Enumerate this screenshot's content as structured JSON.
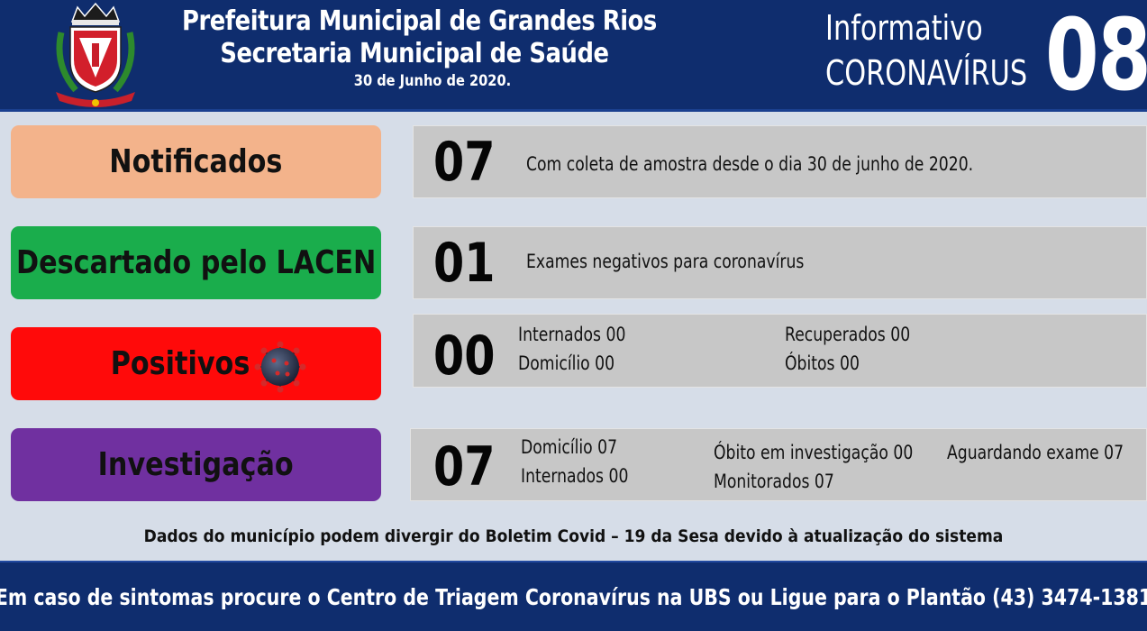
{
  "header": {
    "title_line1": "Prefeitura Municipal de Grandes Rios",
    "title_line2": "Secretaria Municipal de Saúde",
    "date": "30 de Junho de 2020.",
    "info_word": "Informativo",
    "info_topic": "CORONAVÍRUS",
    "edition_number": "08",
    "crest_icon": "municipal-coat-of-arms-icon"
  },
  "rows": {
    "notificados": {
      "label": "Notificados",
      "color": "#f3b38b",
      "count": "07",
      "note": "Com coleta  de amostra desde o dia 30 de junho de 2020."
    },
    "descartado": {
      "label": "Descartado pelo LACEN",
      "color": "#1aad4c",
      "count": "01",
      "note": "Exames negativos  para coronavírus"
    },
    "positivos": {
      "label": "Positivos",
      "color": "#ff0a0a",
      "icon": "coronavirus-icon",
      "count": "00",
      "internados": "Internados 00",
      "domicilio": "Domicílio  00",
      "recuperados": "Recuperados 00",
      "obitos": "Óbitos 00"
    },
    "investigacao": {
      "label": "Investigação",
      "color": "#7030a0",
      "count": "07",
      "domicilio": "Domicílio  07",
      "internados": "Internados 00",
      "obito_investigacao": "Óbito  em investigação  00",
      "monitorados": "Monitorados 07",
      "aguardando": "Aguardando exame 07"
    }
  },
  "disclaimer": "Dados do município podem divergir do Boletim Covid – 19 da Sesa devido à atualização  do sistema",
  "footer": "Em caso de sintomas procure o Centro de Triagem Coronavírus na UBS ou Ligue para o Plantão  (43) 3474-1381"
}
